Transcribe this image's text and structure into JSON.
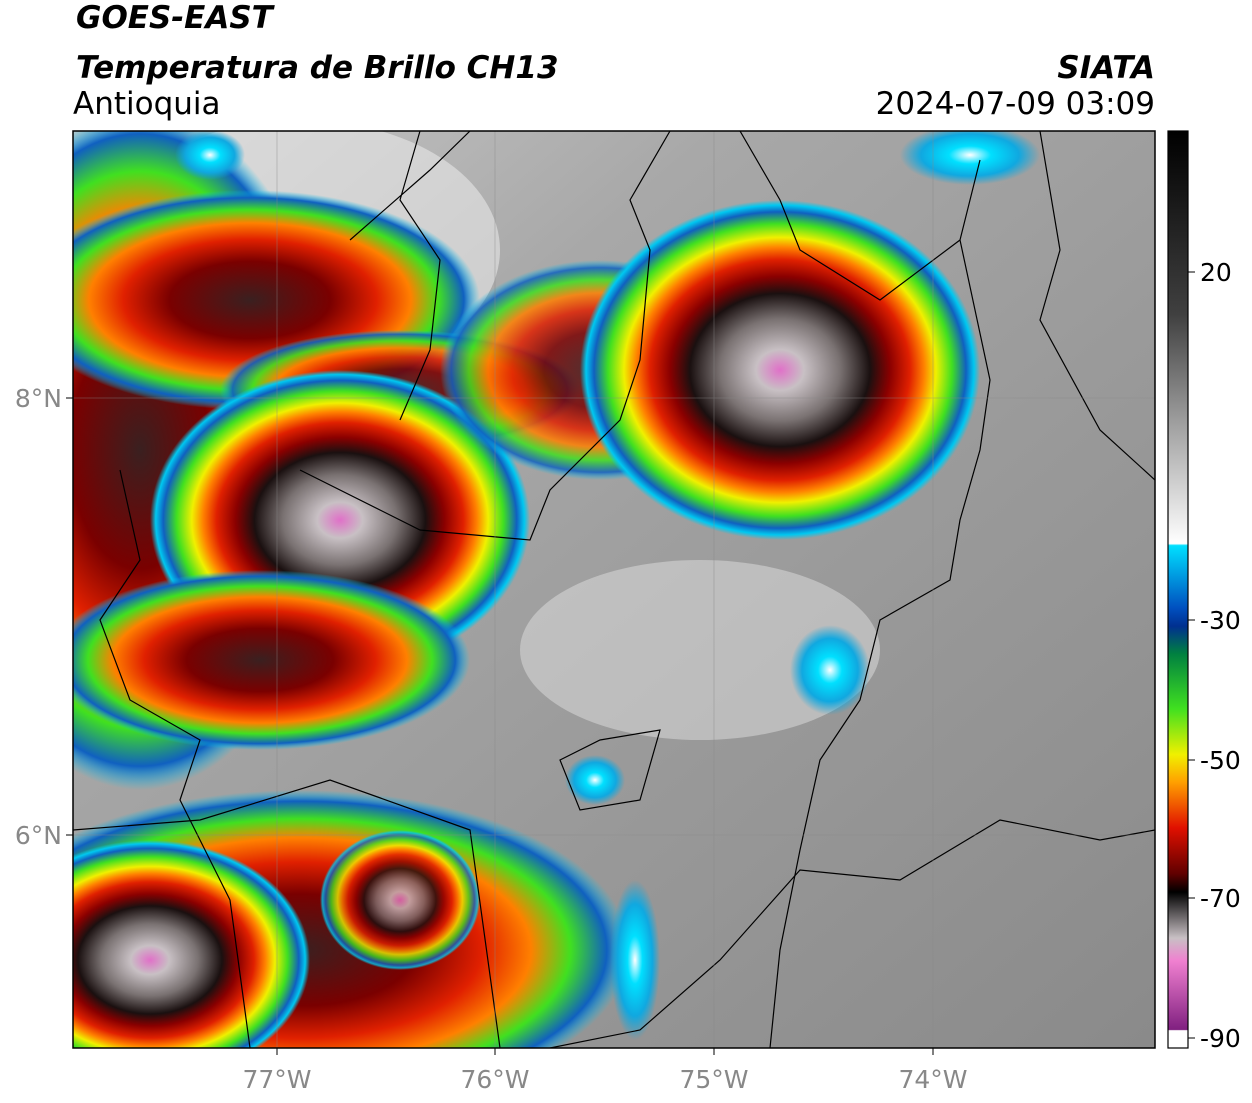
{
  "header": {
    "satellite": "GOES-EAST",
    "product": "Temperatura de Brillo CH13",
    "region": "Antioquia",
    "source": "SIATA",
    "datetime": "2024-07-09 03:09"
  },
  "map": {
    "lat_labels": [
      "8°N",
      "6°N"
    ],
    "lon_labels": [
      "77°W",
      "76°W",
      "75°W",
      "74°W"
    ]
  },
  "colorbar": {
    "tick_labels": [
      "20",
      "-30",
      "-50",
      "-70",
      "-90"
    ]
  }
}
